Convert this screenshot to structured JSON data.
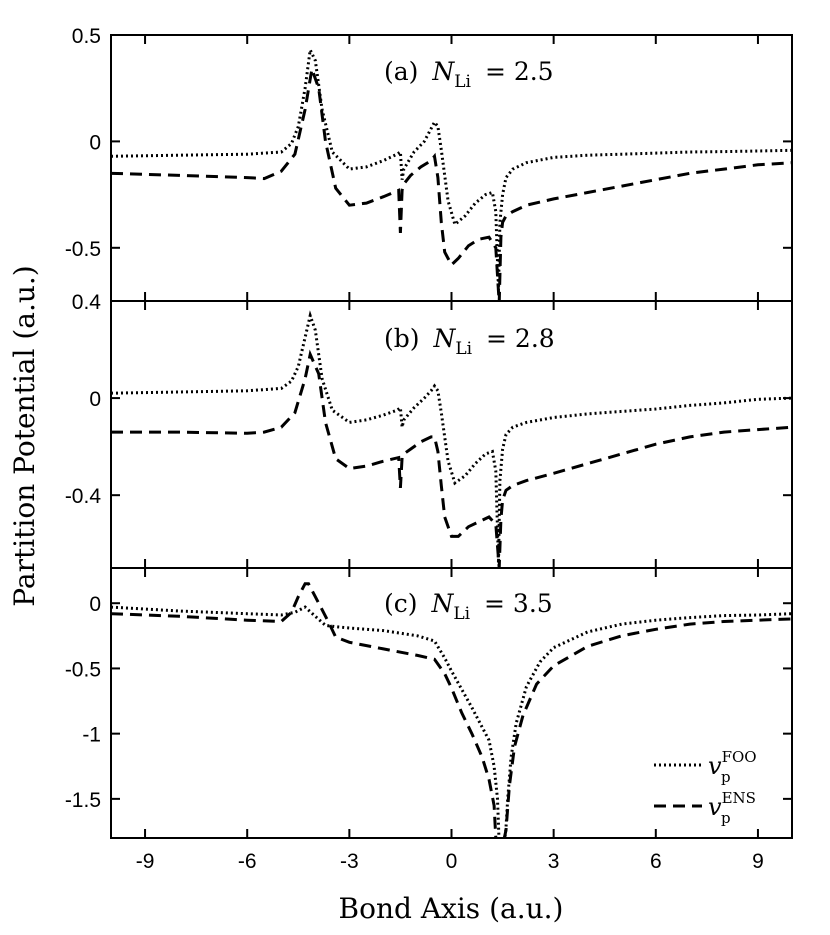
{
  "chart_data": [
    {
      "type": "line",
      "label_prefix": "(a)",
      "label_var": "N",
      "label_sub": "Li",
      "label_value": "= 2.5",
      "xlim": [
        -10,
        10
      ],
      "ylim": [
        -0.75,
        0.5
      ],
      "yticks": [
        0.5,
        0,
        -0.5
      ],
      "ytick_labels": [
        "0.5",
        "0",
        "-0.5"
      ],
      "series": [
        {
          "name": "v_p^FOO",
          "style": "dotted",
          "x": [
            -10,
            -8,
            -6,
            -5,
            -4.7,
            -4.5,
            -4.3,
            -4.15,
            -4.0,
            -3.8,
            -3.5,
            -3.0,
            -2.5,
            -2.0,
            -1.6,
            -1.5,
            -1.45,
            -1.4,
            -1.1,
            -0.8,
            -0.6,
            -0.5,
            -0.4,
            -0.3,
            -0.1,
            0.1,
            0.4,
            0.7,
            1.0,
            1.2,
            1.3,
            1.38,
            1.42,
            1.5,
            1.6,
            1.8,
            2.2,
            3.0,
            4.0,
            5.0,
            6.0,
            7.0,
            8.0,
            9.0,
            10.0
          ],
          "y": [
            -0.07,
            -0.065,
            -0.06,
            -0.05,
            -0.01,
            0.07,
            0.25,
            0.43,
            0.38,
            0.15,
            -0.05,
            -0.13,
            -0.12,
            -0.09,
            -0.06,
            -0.05,
            -0.18,
            -0.13,
            -0.05,
            0.0,
            0.06,
            0.09,
            0.07,
            -0.04,
            -0.28,
            -0.39,
            -0.35,
            -0.29,
            -0.25,
            -0.24,
            -0.33,
            -0.7,
            -0.38,
            -0.25,
            -0.17,
            -0.13,
            -0.1,
            -0.075,
            -0.065,
            -0.06,
            -0.055,
            -0.05,
            -0.048,
            -0.045,
            -0.042
          ]
        },
        {
          "name": "v_p^ENS",
          "style": "dashed",
          "x": [
            -10,
            -8,
            -6,
            -5.5,
            -5,
            -4.6,
            -4.3,
            -4.1,
            -3.9,
            -3.7,
            -3.4,
            -3.0,
            -2.5,
            -2.0,
            -1.55,
            -1.5,
            -1.45,
            -1.4,
            -1.2,
            -0.9,
            -0.6,
            -0.5,
            -0.4,
            -0.3,
            -0.2,
            0.0,
            0.2,
            0.5,
            0.8,
            1.1,
            1.3,
            1.4,
            1.45,
            1.5,
            1.6,
            1.8,
            2.2,
            3.0,
            4.0,
            5.0,
            6.0,
            7.0,
            8.0,
            9.0,
            10.0
          ],
          "y": [
            -0.15,
            -0.16,
            -0.17,
            -0.175,
            -0.14,
            -0.06,
            0.15,
            0.34,
            0.25,
            0.0,
            -0.22,
            -0.3,
            -0.29,
            -0.26,
            -0.23,
            -0.43,
            -0.23,
            -0.2,
            -0.16,
            -0.12,
            -0.09,
            -0.07,
            -0.17,
            -0.38,
            -0.52,
            -0.58,
            -0.55,
            -0.49,
            -0.46,
            -0.45,
            -0.5,
            -0.76,
            -0.45,
            -0.38,
            -0.35,
            -0.33,
            -0.3,
            -0.27,
            -0.24,
            -0.21,
            -0.18,
            -0.15,
            -0.13,
            -0.11,
            -0.1
          ]
        }
      ]
    },
    {
      "type": "line",
      "label_prefix": "(b)",
      "label_var": "N",
      "label_sub": "Li",
      "label_value": "= 2.8",
      "xlim": [
        -10,
        10
      ],
      "ylim": [
        -0.7,
        0.4
      ],
      "yticks": [
        0.4,
        0,
        -0.4
      ],
      "ytick_labels": [
        "0.4",
        "0",
        "-0.4"
      ],
      "series": [
        {
          "name": "v_p^FOO",
          "style": "dotted",
          "x": [
            -10,
            -8,
            -6,
            -5,
            -4.7,
            -4.5,
            -4.3,
            -4.15,
            -4.0,
            -3.8,
            -3.5,
            -3.0,
            -2.5,
            -2.0,
            -1.6,
            -1.5,
            -1.45,
            -1.4,
            -1.1,
            -0.8,
            -0.6,
            -0.5,
            -0.4,
            -0.3,
            -0.1,
            0.1,
            0.4,
            0.7,
            1.0,
            1.2,
            1.3,
            1.38,
            1.42,
            1.5,
            1.6,
            1.8,
            2.2,
            3.0,
            4.0,
            5.0,
            6.0,
            7.0,
            8.0,
            9.0,
            10.0
          ],
          "y": [
            0.02,
            0.025,
            0.03,
            0.04,
            0.07,
            0.13,
            0.25,
            0.34,
            0.28,
            0.08,
            -0.05,
            -0.1,
            -0.09,
            -0.07,
            -0.05,
            -0.04,
            -0.12,
            -0.09,
            -0.04,
            0.0,
            0.03,
            0.05,
            0.03,
            -0.06,
            -0.26,
            -0.35,
            -0.32,
            -0.27,
            -0.23,
            -0.22,
            -0.3,
            -0.68,
            -0.34,
            -0.21,
            -0.15,
            -0.12,
            -0.1,
            -0.08,
            -0.065,
            -0.055,
            -0.045,
            -0.03,
            -0.02,
            -0.005,
            0.0
          ]
        },
        {
          "name": "v_p^ENS",
          "style": "dashed",
          "x": [
            -10,
            -8,
            -6,
            -5.5,
            -5,
            -4.6,
            -4.3,
            -4.15,
            -3.9,
            -3.7,
            -3.4,
            -3.0,
            -2.5,
            -2.0,
            -1.55,
            -1.5,
            -1.45,
            -1.4,
            -1.2,
            -0.9,
            -0.6,
            -0.5,
            -0.4,
            -0.3,
            -0.2,
            0.0,
            0.2,
            0.5,
            0.8,
            1.1,
            1.3,
            1.4,
            1.45,
            1.5,
            1.6,
            1.8,
            2.2,
            3.0,
            4.0,
            5.0,
            6.0,
            7.0,
            8.0,
            9.0,
            10.0
          ],
          "y": [
            -0.14,
            -0.14,
            -0.145,
            -0.14,
            -0.12,
            -0.06,
            0.08,
            0.18,
            0.1,
            -0.1,
            -0.25,
            -0.29,
            -0.28,
            -0.26,
            -0.245,
            -0.37,
            -0.245,
            -0.23,
            -0.21,
            -0.18,
            -0.16,
            -0.16,
            -0.22,
            -0.36,
            -0.49,
            -0.57,
            -0.57,
            -0.53,
            -0.51,
            -0.49,
            -0.52,
            -0.7,
            -0.5,
            -0.42,
            -0.38,
            -0.36,
            -0.34,
            -0.31,
            -0.27,
            -0.23,
            -0.19,
            -0.16,
            -0.14,
            -0.13,
            -0.12
          ]
        }
      ]
    },
    {
      "type": "line",
      "label_prefix": "(c)",
      "label_var": "N",
      "label_sub": "Li",
      "label_value": "= 3.5",
      "xlim": [
        -10,
        10
      ],
      "ylim": [
        -1.8,
        0.27
      ],
      "yticks": [
        0,
        -0.5,
        -1,
        -1.5
      ],
      "ytick_labels": [
        "0",
        "-0.5",
        "-1",
        "-1.5"
      ],
      "series": [
        {
          "name": "v_p^FOO",
          "style": "dotted",
          "x": [
            -10,
            -8,
            -6,
            -5,
            -4.6,
            -4.3,
            -4.0,
            -3.7,
            -3.4,
            -3.0,
            -2.0,
            -1.0,
            -0.5,
            -0.2,
            0.0,
            0.3,
            0.6,
            0.9,
            1.1,
            1.25,
            1.35,
            1.4,
            1.45,
            1.5,
            1.55,
            1.6,
            1.65,
            1.75,
            1.9,
            2.2,
            2.6,
            3.0,
            4.0,
            5.0,
            6.0,
            7.0,
            8.0,
            9.0,
            10.0
          ],
          "y": [
            -0.03,
            -0.06,
            -0.08,
            -0.09,
            -0.07,
            -0.03,
            -0.1,
            -0.17,
            -0.18,
            -0.19,
            -0.21,
            -0.25,
            -0.29,
            -0.42,
            -0.52,
            -0.66,
            -0.8,
            -0.95,
            -1.05,
            -1.25,
            -1.5,
            -1.85,
            -1.85,
            -1.85,
            -1.85,
            -1.72,
            -1.5,
            -1.18,
            -0.92,
            -0.64,
            -0.45,
            -0.34,
            -0.22,
            -0.16,
            -0.13,
            -0.11,
            -0.095,
            -0.09,
            -0.08
          ]
        },
        {
          "name": "v_p^ENS",
          "style": "dashed",
          "x": [
            -10,
            -8,
            -6,
            -5,
            -4.7,
            -4.5,
            -4.3,
            -4.2,
            -4.0,
            -3.8,
            -3.6,
            -3.4,
            -3.0,
            -2.0,
            -1.0,
            -0.5,
            -0.2,
            0.0,
            0.3,
            0.6,
            0.9,
            1.1,
            1.25,
            1.3,
            1.35,
            1.4,
            1.45,
            1.5,
            1.55,
            1.6,
            1.7,
            1.85,
            2.1,
            2.5,
            3.0,
            4.0,
            5.0,
            6.0,
            7.0,
            8.0,
            9.0,
            10.0
          ],
          "y": [
            -0.08,
            -0.1,
            -0.13,
            -0.14,
            -0.07,
            0.05,
            0.15,
            0.15,
            0.05,
            -0.05,
            -0.15,
            -0.26,
            -0.3,
            -0.35,
            -0.4,
            -0.43,
            -0.54,
            -0.65,
            -0.84,
            -1.0,
            -1.18,
            -1.35,
            -1.55,
            -1.8,
            -1.85,
            -1.85,
            -1.85,
            -1.85,
            -1.8,
            -1.74,
            -1.4,
            -1.1,
            -0.86,
            -0.62,
            -0.48,
            -0.33,
            -0.25,
            -0.2,
            -0.16,
            -0.14,
            -0.13,
            -0.12
          ]
        }
      ]
    }
  ],
  "xticks": [
    -9,
    -6,
    -3,
    0,
    3,
    6,
    9
  ],
  "xtick_labels": [
    "-9",
    "-6",
    "-3",
    "0",
    "3",
    "6",
    "9"
  ],
  "xlabel": "Bond Axis (a.u.)",
  "ylabel": "Partition Potential (a.u.)",
  "legend": {
    "placement": "bottom-right of panel (c)",
    "entries": [
      {
        "base": "v",
        "sub": "p",
        "sup": "FOO",
        "style": "dotted"
      },
      {
        "base": "v",
        "sub": "p",
        "sup": "ENS",
        "style": "dashed"
      }
    ]
  }
}
